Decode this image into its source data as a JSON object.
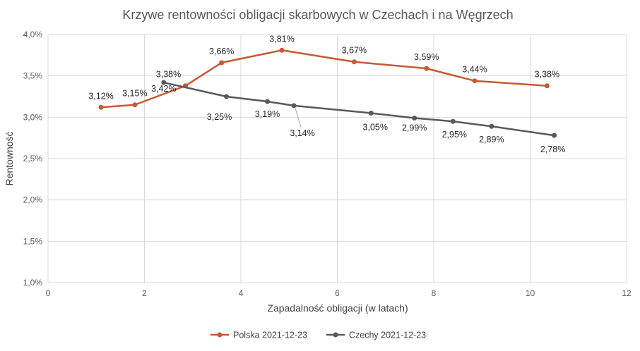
{
  "chart_data": {
    "type": "line",
    "title": "Krzywe rentowności obligacji skarbowych w Czechach i na Węgrzech",
    "xlabel": "Zapadalność obligacji (w latach)",
    "ylabel": "Rentowność",
    "xlim": [
      0,
      12
    ],
    "xticks": [
      0,
      2,
      4,
      6,
      8,
      10,
      12
    ],
    "xtick_labels": [
      "0",
      "2",
      "4",
      "6",
      "8",
      "10",
      "12"
    ],
    "ylim": [
      1.0,
      4.0
    ],
    "yticks": [
      1.0,
      1.5,
      2.0,
      2.5,
      3.0,
      3.5,
      4.0
    ],
    "ytick_labels": [
      "1,0%",
      "1,5%",
      "2,0%",
      "2,5%",
      "3,0%",
      "3,5%",
      "4,0%"
    ],
    "grid": true,
    "legend_position": "bottom",
    "series": [
      {
        "name": "Polska 2021-12-23",
        "color": "#C55A33",
        "x": [
          1.1,
          1.8,
          2.85,
          3.6,
          4.85,
          6.35,
          7.85,
          8.85,
          10.35
        ],
        "y": [
          3.12,
          3.15,
          3.38,
          3.66,
          3.81,
          3.67,
          3.59,
          3.44,
          3.38
        ],
        "labels": [
          "3,12%",
          "3,15%",
          "3,38%",
          "3,66%",
          "3,81%",
          "3,67%",
          "3,59%",
          "3,44%",
          "3,38%"
        ]
      },
      {
        "name": "Czechy 2021-12-23",
        "color": "#595959",
        "x": [
          2.4,
          3.7,
          4.55,
          5.1,
          6.7,
          7.6,
          8.4,
          9.2,
          10.5
        ],
        "y": [
          3.42,
          3.25,
          3.19,
          3.14,
          3.05,
          2.99,
          2.95,
          2.89,
          2.78
        ],
        "labels": [
          "3,42%",
          "3,25%",
          "3,19%",
          "3,14%",
          "3,05%",
          "2,99%",
          "2,95%",
          "2,89%",
          "2,78%"
        ]
      }
    ]
  }
}
